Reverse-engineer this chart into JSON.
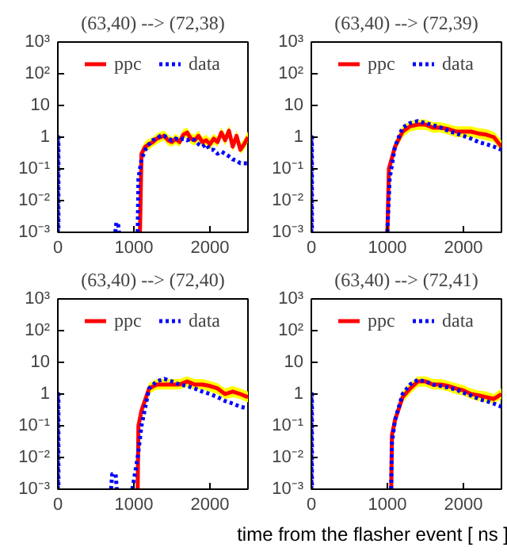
{
  "chart_data": [
    {
      "type": "line",
      "title": "(63,40) --> (72,38)",
      "log": "y",
      "legend": "top",
      "xlim": [
        0,
        2500
      ],
      "xticks": [
        0,
        1000,
        2000
      ],
      "ylim": [
        0.001,
        1000
      ],
      "yticks": [
        {
          "value": 0.001,
          "label": "10⁻³"
        },
        {
          "value": 0.01,
          "label": "10⁻²"
        },
        {
          "value": 0.1,
          "label": "10⁻¹"
        },
        {
          "value": 1,
          "label": "1"
        },
        {
          "value": 10,
          "label": "10"
        },
        {
          "value": 100,
          "label": "10²"
        },
        {
          "value": 1000,
          "label": "10³"
        }
      ],
      "series": [
        {
          "name": "ppc",
          "color": "#ff0000",
          "line_style": "solid",
          "x": [
            1080,
            1100,
            1150,
            1200,
            1250,
            1300,
            1350,
            1400,
            1450,
            1500,
            1550,
            1600,
            1650,
            1700,
            1750,
            1800,
            1850,
            1900,
            1950,
            2000,
            2050,
            2100,
            2150,
            2200,
            2250,
            2300,
            2350,
            2400,
            2450,
            2500
          ],
          "values": [
            0.001,
            0.3,
            0.5,
            0.6,
            0.7,
            0.9,
            1.0,
            1.1,
            0.8,
            0.7,
            0.9,
            0.7,
            1.2,
            1.4,
            0.9,
            0.8,
            1.1,
            0.7,
            0.8,
            0.6,
            0.9,
            0.7,
            1.4,
            0.8,
            1.6,
            0.5,
            1.1,
            0.4,
            0.6,
            1.0
          ],
          "upper": [
            null,
            0.45,
            0.75,
            0.9,
            1.0,
            1.3,
            1.5,
            1.6,
            1.2,
            1.0,
            1.3,
            1.0,
            1.8,
            2.0,
            1.3,
            1.2,
            1.6,
            1.0,
            1.2,
            0.9,
            1.3,
            1.0,
            2.0,
            1.2,
            2.3,
            0.8,
            1.6,
            0.6,
            0.9,
            1.5
          ],
          "lower": [
            null,
            0.2,
            0.35,
            0.4,
            0.5,
            0.6,
            0.7,
            0.8,
            0.55,
            0.5,
            0.6,
            0.5,
            0.85,
            1.0,
            0.6,
            0.55,
            0.8,
            0.5,
            0.55,
            0.4,
            0.6,
            0.5,
            1.0,
            0.55,
            1.1,
            0.35,
            0.8,
            0.3,
            0.4,
            0.7
          ]
        },
        {
          "name": "data",
          "color": "#0000ff",
          "line_style": "dotted",
          "x": [
            0,
            0,
            8,
            8,
            400,
            755,
            770,
            790,
            805,
            900,
            1050,
            1060,
            1100,
            1150,
            1200,
            1250,
            1300,
            1350,
            1400,
            1450,
            1500,
            1550,
            1600,
            1650,
            1700,
            1750,
            1800,
            1850,
            1900,
            1950,
            2000,
            2050,
            2100,
            2150,
            2200,
            2250,
            2300,
            2350,
            2400,
            2450,
            2500
          ],
          "values": [
            0.001,
            1,
            1,
            0.001,
            null,
            0.001,
            0.002,
            0.002,
            0.001,
            null,
            0.001,
            0.05,
            0.2,
            0.4,
            0.6,
            0.8,
            0.9,
            1.1,
            1.1,
            0.9,
            0.8,
            0.9,
            0.8,
            0.9,
            0.8,
            0.9,
            0.8,
            0.6,
            0.5,
            0.6,
            0.4,
            0.4,
            0.3,
            0.35,
            0.3,
            0.25,
            0.2,
            0.18,
            0.15,
            0.15,
            0.15
          ]
        }
      ]
    },
    {
      "type": "line",
      "title": "(63,40) --> (72,39)",
      "log": "y",
      "legend": "top",
      "xlim": [
        0,
        2500
      ],
      "xticks": [
        0,
        1000,
        2000
      ],
      "ylim": [
        0.001,
        1000
      ],
      "yticks": [
        {
          "value": 0.001,
          "label": "10⁻³"
        },
        {
          "value": 0.01,
          "label": "10⁻²"
        },
        {
          "value": 0.1,
          "label": "10⁻¹"
        },
        {
          "value": 1,
          "label": "1"
        },
        {
          "value": 10,
          "label": "10"
        },
        {
          "value": 100,
          "label": "10²"
        },
        {
          "value": 1000,
          "label": "10³"
        }
      ],
      "series": [
        {
          "name": "ppc",
          "color": "#ff0000",
          "line_style": "solid",
          "x": [
            1000,
            1020,
            1100,
            1200,
            1300,
            1400,
            1500,
            1600,
            1700,
            1800,
            1900,
            2000,
            2100,
            2200,
            2300,
            2400,
            2500
          ],
          "values": [
            0.001,
            0.1,
            0.5,
            1.5,
            2.2,
            2.5,
            2.5,
            2,
            2,
            1.8,
            1.5,
            1.5,
            1.5,
            1.3,
            1.2,
            1.0,
            0.5
          ],
          "upper": [
            null,
            0.15,
            0.75,
            2.2,
            3.2,
            3.6,
            3.6,
            3.0,
            3.0,
            2.6,
            2.2,
            2.2,
            2.2,
            1.9,
            1.8,
            1.5,
            0.8
          ],
          "lower": [
            null,
            0.07,
            0.35,
            1.0,
            1.5,
            1.7,
            1.7,
            1.4,
            1.4,
            1.2,
            1.0,
            1.0,
            1.0,
            0.9,
            0.8,
            0.7,
            0.35
          ]
        },
        {
          "name": "data",
          "color": "#0000ff",
          "line_style": "dotted",
          "x": [
            0,
            0,
            8,
            8,
            500,
            1000,
            1030,
            1100,
            1200,
            1300,
            1400,
            1500,
            1600,
            1700,
            1800,
            1900,
            2000,
            2100,
            2200,
            2300,
            2400,
            2500
          ],
          "values": [
            0.001,
            1,
            1,
            0.001,
            null,
            0.001,
            0.05,
            0.5,
            2,
            2.8,
            3.2,
            2.8,
            2.4,
            2,
            1.6,
            1.3,
            1.1,
            0.9,
            0.7,
            0.6,
            0.5,
            0.4
          ]
        }
      ]
    },
    {
      "type": "line",
      "title": "(63,40) --> (72,40)",
      "log": "y",
      "legend": "top",
      "xlim": [
        0,
        2500
      ],
      "xticks": [
        0,
        1000,
        2000
      ],
      "ylim": [
        0.001,
        1000
      ],
      "yticks": [
        {
          "value": 0.001,
          "label": "10⁻³"
        },
        {
          "value": 0.01,
          "label": "10⁻²"
        },
        {
          "value": 0.1,
          "label": "10⁻¹"
        },
        {
          "value": 1,
          "label": "1"
        },
        {
          "value": 10,
          "label": "10"
        },
        {
          "value": 100,
          "label": "10²"
        },
        {
          "value": 1000,
          "label": "10³"
        }
      ],
      "series": [
        {
          "name": "ppc",
          "color": "#ff0000",
          "line_style": "solid",
          "x": [
            1050,
            1060,
            1100,
            1200,
            1300,
            1400,
            1500,
            1600,
            1700,
            1800,
            1900,
            2000,
            2100,
            2200,
            2300,
            2400,
            2500
          ],
          "values": [
            0.001,
            0.1,
            0.3,
            1.5,
            2,
            2,
            2,
            2,
            2.5,
            2,
            2,
            1.8,
            1.5,
            1.0,
            1.2,
            1.0,
            0.8
          ],
          "upper": [
            null,
            0.15,
            0.45,
            2.2,
            3,
            3,
            3,
            3,
            3.6,
            3,
            3,
            2.6,
            2.2,
            1.5,
            1.8,
            1.5,
            1.2
          ],
          "lower": [
            null,
            0.07,
            0.2,
            1.0,
            1.4,
            1.4,
            1.4,
            1.4,
            1.7,
            1.4,
            1.4,
            1.2,
            1.0,
            0.7,
            0.8,
            0.7,
            0.55
          ]
        },
        {
          "name": "data",
          "color": "#0000ff",
          "line_style": "dotted",
          "x": [
            0,
            0,
            8,
            8,
            400,
            700,
            715,
            760,
            775,
            900,
            980,
            1050,
            1100,
            1200,
            1300,
            1400,
            1500,
            1600,
            1700,
            1800,
            1900,
            2000,
            2100,
            2200,
            2300,
            2400,
            2500
          ],
          "values": [
            0.001,
            1,
            1,
            0.001,
            null,
            0.001,
            0.003,
            0.003,
            0.001,
            null,
            0.001,
            0.01,
            0.1,
            1.5,
            2.5,
            3,
            2.5,
            2,
            1.8,
            1.5,
            1.2,
            1.0,
            0.8,
            0.6,
            0.5,
            0.4,
            0.35
          ]
        }
      ]
    },
    {
      "type": "line",
      "title": "(63,40) --> (72,41)",
      "xlabel": "time from the flasher event [ ns ]",
      "log": "y",
      "legend": "top",
      "xlim": [
        0,
        2500
      ],
      "xticks": [
        0,
        1000,
        2000
      ],
      "ylim": [
        0.001,
        1000
      ],
      "yticks": [
        {
          "value": 0.001,
          "label": "10⁻³"
        },
        {
          "value": 0.01,
          "label": "10⁻²"
        },
        {
          "value": 0.1,
          "label": "10⁻¹"
        },
        {
          "value": 1,
          "label": "1"
        },
        {
          "value": 10,
          "label": "10"
        },
        {
          "value": 100,
          "label": "10²"
        },
        {
          "value": 1000,
          "label": "10³"
        }
      ],
      "series": [
        {
          "name": "ppc",
          "color": "#ff0000",
          "line_style": "solid",
          "x": [
            1050,
            1060,
            1100,
            1200,
            1300,
            1400,
            1500,
            1600,
            1700,
            1800,
            1900,
            2000,
            2100,
            2200,
            2300,
            2400,
            2500
          ],
          "values": [
            0.001,
            0.05,
            0.15,
            0.8,
            1.5,
            2.5,
            2.5,
            2,
            2,
            1.8,
            1.5,
            1.3,
            1.0,
            0.9,
            0.8,
            0.7,
            1.0
          ],
          "upper": [
            null,
            0.08,
            0.22,
            1.2,
            2.2,
            3.6,
            3.6,
            3.0,
            3.0,
            2.6,
            2.2,
            1.9,
            1.5,
            1.3,
            1.2,
            1.0,
            1.5
          ],
          "lower": [
            null,
            0.035,
            0.1,
            0.55,
            1.0,
            1.7,
            1.7,
            1.4,
            1.4,
            1.2,
            1.0,
            0.9,
            0.7,
            0.6,
            0.55,
            0.5,
            0.7
          ]
        },
        {
          "name": "data",
          "color": "#0000ff",
          "line_style": "dotted",
          "x": [
            0,
            0,
            8,
            8,
            500,
            1050,
            1060,
            1100,
            1200,
            1300,
            1400,
            1500,
            1600,
            1700,
            1800,
            1900,
            2000,
            2100,
            2200,
            2300,
            2400,
            2500
          ],
          "values": [
            0.001,
            1,
            1,
            0.001,
            null,
            0.001,
            0.03,
            0.15,
            1,
            2,
            2.8,
            2.5,
            2,
            1.8,
            1.6,
            1.4,
            1.1,
            0.9,
            0.7,
            0.6,
            0.5,
            0.4
          ]
        }
      ]
    }
  ]
}
